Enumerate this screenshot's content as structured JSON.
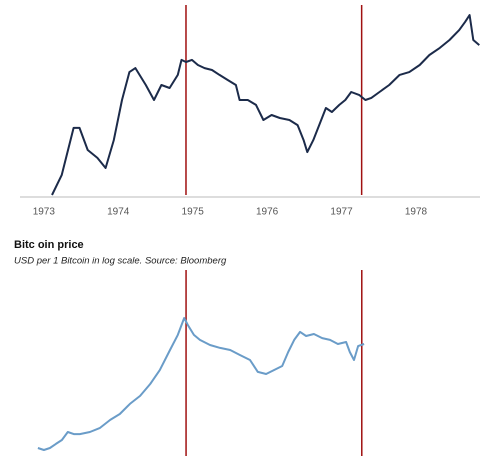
{
  "chart_data": [
    {
      "type": "line",
      "color": "#1c2b4a",
      "x": [
        1973.11,
        1973.24,
        1973.4,
        1973.48,
        1973.59,
        1973.72,
        1973.83,
        1973.94,
        1974.05,
        1974.15,
        1974.23,
        1974.37,
        1974.48,
        1974.58,
        1974.69,
        1974.8,
        1974.85,
        1974.91,
        1974.99,
        1975.07,
        1975.16,
        1975.26,
        1975.36,
        1975.47,
        1975.58,
        1975.63,
        1975.74,
        1975.85,
        1975.95,
        1976.06,
        1976.17,
        1976.3,
        1976.41,
        1976.49,
        1976.54,
        1976.62,
        1976.7,
        1976.79,
        1976.87,
        1976.97,
        1977.05,
        1977.13,
        1977.24,
        1977.32,
        1977.4,
        1977.51,
        1977.64,
        1977.78,
        1977.91,
        1978.05,
        1978.18,
        1978.32,
        1978.45,
        1978.58,
        1978.66,
        1978.72,
        1978.77,
        1978.85
      ],
      "values": [
        0,
        10.5,
        35.3,
        35.3,
        23.7,
        19.5,
        14.2,
        28.9,
        50,
        64.7,
        66.8,
        57.9,
        50,
        57.9,
        56.3,
        63.2,
        71.1,
        70,
        71.1,
        68.4,
        66.8,
        65.8,
        63.2,
        60.5,
        57.9,
        50,
        50,
        47.4,
        39.5,
        42.1,
        40.5,
        39.5,
        36.8,
        28.9,
        22.6,
        28.9,
        36.8,
        45.8,
        43.7,
        47.4,
        50,
        54.2,
        52.6,
        50,
        51.1,
        54.2,
        57.9,
        63.2,
        64.7,
        68.4,
        73.7,
        77.4,
        81.6,
        86.8,
        91.1,
        94.7,
        81.6,
        78.9
      ],
      "xlim": [
        1972.68,
        1978.86
      ],
      "ylim": [
        0,
        100
      ],
      "xticks": [
        1973,
        1974,
        1975,
        1976,
        1977,
        1978
      ],
      "vlines": [
        1974.91,
        1977.27
      ],
      "vline_color": "#a01010"
    },
    {
      "type": "line",
      "title": "Bitc oin price",
      "subtitle": "USD per 1 Bitcoin in log scale. Source: Bloomberg",
      "color": "#6a9cc8",
      "x": [
        3.9,
        5.2,
        6.5,
        7.8,
        9.1,
        10.4,
        11.7,
        13.0,
        15.2,
        17.4,
        19.6,
        21.7,
        23.9,
        26.1,
        28.3,
        30.4,
        32.6,
        34.3,
        35.7,
        36.5,
        37.8,
        39.1,
        41.3,
        43.5,
        45.7,
        47.8,
        50,
        51.7,
        53.5,
        55.2,
        57,
        58.3,
        59.6,
        60.9,
        62.2,
        63.9,
        65.7,
        67.4,
        69.1,
        70.9,
        71.7,
        72.6,
        73.5,
        74.8
      ],
      "values": [
        4.3,
        3.2,
        4.3,
        6.5,
        8.6,
        12.9,
        11.8,
        11.8,
        12.9,
        15.1,
        19.4,
        22.6,
        28,
        32.3,
        38.7,
        46.2,
        57,
        65.1,
        74.2,
        70.4,
        65.1,
        62.4,
        59.7,
        58.1,
        57,
        54.3,
        51.6,
        45.2,
        44.1,
        46.2,
        48.4,
        55.9,
        62.4,
        66.7,
        64.5,
        65.6,
        63.4,
        62.4,
        60.2,
        61.3,
        55.9,
        51.6,
        59.1,
        60.2
      ],
      "xlim": [
        0,
        100
      ],
      "ylim": [
        0,
        100
      ],
      "vlines": [
        36.1,
        74.3
      ],
      "vline_color": "#a01010"
    }
  ]
}
